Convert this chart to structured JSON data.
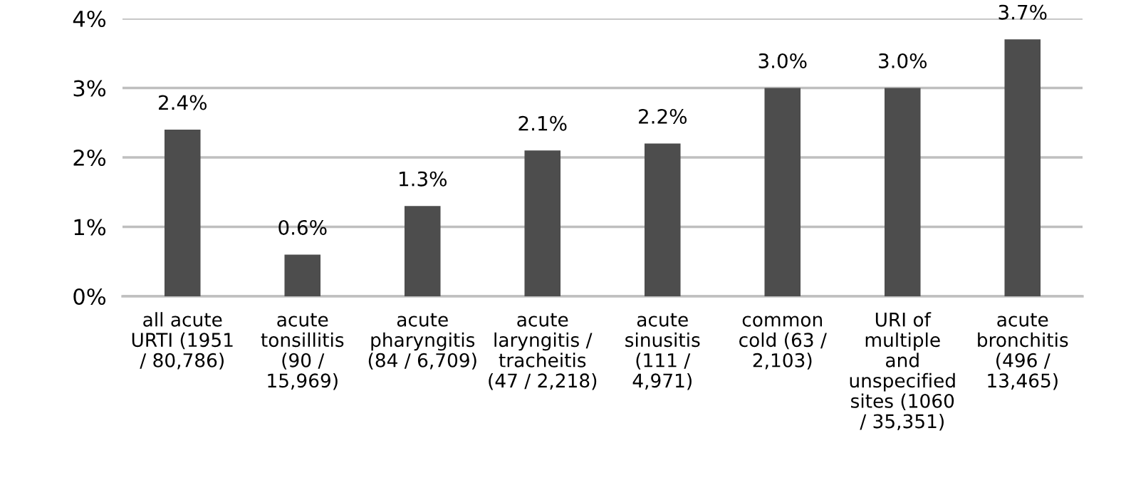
{
  "chart_data": {
    "type": "bar",
    "categories": [
      "all acute\nURTI (1951\n/ 80,786)",
      "acute\ntonsillitis\n(90 /\n15,969)",
      "acute\npharyngitis\n(84 / 6,709)",
      "acute\nlaryngitis /\ntracheitis\n(47 / 2,218)",
      "acute\nsinusitis\n(111 /\n4,971)",
      "common\ncold (63 /\n2,103)",
      "URI of\nmultiple\nand\nunspecified\nsites (1060\n/ 35,351)",
      "acute\nbronchitis\n(496 /\n13,465)"
    ],
    "values": [
      2.4,
      0.6,
      1.3,
      2.1,
      2.2,
      3.0,
      3.0,
      3.7
    ],
    "value_labels": [
      "2.4%",
      "0.6%",
      "1.3%",
      "2.1%",
      "2.2%",
      "3.0%",
      "3.0%",
      "3.7%"
    ],
    "color": "#4d4d4d",
    "ylim": [
      0,
      4
    ],
    "yticks": [
      {
        "value": 0,
        "label": "0%"
      },
      {
        "value": 1,
        "label": "1%"
      },
      {
        "value": 2,
        "label": "2%"
      },
      {
        "value": 3,
        "label": "3%"
      },
      {
        "value": 4,
        "label": "4%"
      }
    ],
    "grid": "y"
  }
}
